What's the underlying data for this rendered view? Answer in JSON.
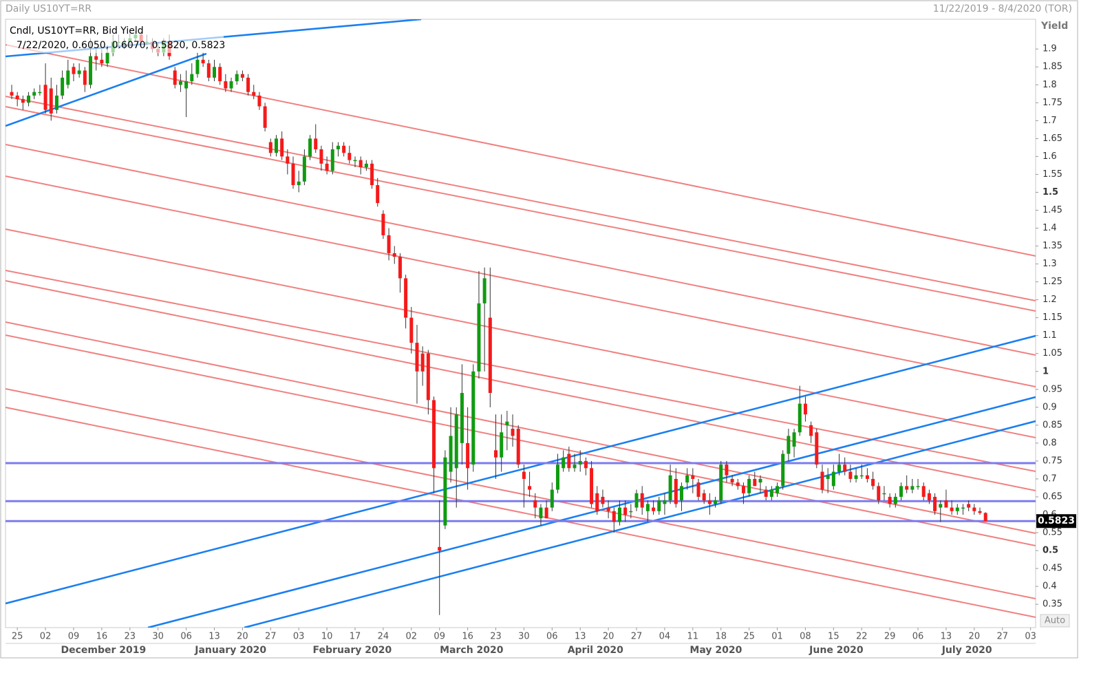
{
  "chart_data": {
    "type": "candlestick",
    "title": "Daily US10YT=RR",
    "date_range": "11/22/2019 - 8/4/2020 (TOR)",
    "legend": "Cndl, US10YT=RR, Bid Yield",
    "legend_values": "7/22/2020, 0.6050, 0.6070, 0.5820, 0.5823",
    "y_label": "Yield",
    "scale_mode": "Auto",
    "up_color": "#109b10",
    "down_color": "#f51a1a",
    "level_color": "#7b7bf0",
    "levels": [
      0.744,
      0.638,
      0.5823
    ],
    "xlim": [
      -1.1,
      181.9
    ],
    "ylim": [
      0.285,
      1.983
    ],
    "yticks": [
      0.35,
      0.4,
      0.45,
      0.5,
      0.55,
      0.6,
      0.65,
      0.7,
      0.75,
      0.8,
      0.85,
      0.9,
      0.95,
      1,
      1.05,
      1.1,
      1.15,
      1.2,
      1.25,
      1.3,
      1.35,
      1.4,
      1.45,
      1.5,
      1.55,
      1.6,
      1.65,
      1.7,
      1.75,
      1.8,
      1.85,
      1.9
    ],
    "xticks": [
      {
        "value": 1,
        "label": "25"
      },
      {
        "value": 6,
        "label": "02"
      },
      {
        "value": 11,
        "label": "09"
      },
      {
        "value": 16,
        "label": "16"
      },
      {
        "value": 21,
        "label": "23"
      },
      {
        "value": 26,
        "label": "30"
      },
      {
        "value": 31,
        "label": "06"
      },
      {
        "value": 36,
        "label": "13"
      },
      {
        "value": 41,
        "label": "20"
      },
      {
        "value": 46,
        "label": "27"
      },
      {
        "value": 51,
        "label": "03"
      },
      {
        "value": 56,
        "label": "10"
      },
      {
        "value": 61,
        "label": "17"
      },
      {
        "value": 66,
        "label": "24"
      },
      {
        "value": 71,
        "label": "02"
      },
      {
        "value": 76,
        "label": "09"
      },
      {
        "value": 81,
        "label": "16"
      },
      {
        "value": 86,
        "label": "23"
      },
      {
        "value": 91,
        "label": "30"
      },
      {
        "value": 96,
        "label": "06"
      },
      {
        "value": 101,
        "label": "13"
      },
      {
        "value": 106,
        "label": "20"
      },
      {
        "value": 111,
        "label": "27"
      },
      {
        "value": 116,
        "label": "04"
      },
      {
        "value": 121,
        "label": "11"
      },
      {
        "value": 126,
        "label": "18"
      },
      {
        "value": 131,
        "label": "25"
      },
      {
        "value": 136,
        "label": "01"
      },
      {
        "value": 141,
        "label": "08"
      },
      {
        "value": 146,
        "label": "15"
      },
      {
        "value": 151,
        "label": "22"
      },
      {
        "value": 156,
        "label": "29"
      },
      {
        "value": 161,
        "label": "06"
      },
      {
        "value": 166,
        "label": "13"
      },
      {
        "value": 171,
        "label": "20"
      },
      {
        "value": 176,
        "label": "27"
      },
      {
        "value": 181,
        "label": "03"
      }
    ],
    "months": [
      {
        "value": 16.3,
        "label": "December 2019"
      },
      {
        "value": 38.9,
        "label": "January 2020"
      },
      {
        "value": 60.5,
        "label": "February 2020"
      },
      {
        "value": 81.7,
        "label": "March 2020"
      },
      {
        "value": 103.7,
        "label": "April 2020"
      },
      {
        "value": 125.1,
        "label": "May 2020"
      },
      {
        "value": 146.5,
        "label": "June 2020"
      },
      {
        "value": 169.7,
        "label": "July 2020"
      }
    ],
    "candles": [
      [
        1.78,
        1.8,
        1.76,
        1.77
      ],
      [
        1.77,
        1.78,
        1.74,
        1.76
      ],
      [
        1.76,
        1.77,
        1.73,
        1.75
      ],
      [
        1.75,
        1.78,
        1.74,
        1.77
      ],
      [
        1.77,
        1.79,
        1.76,
        1.78
      ],
      [
        1.78,
        1.8,
        1.77,
        1.78
      ],
      [
        1.8,
        1.86,
        1.72,
        1.73
      ],
      [
        1.79,
        1.82,
        1.7,
        1.72
      ],
      [
        1.73,
        1.8,
        1.72,
        1.77
      ],
      [
        1.77,
        1.84,
        1.76,
        1.82
      ],
      [
        1.8,
        1.87,
        1.79,
        1.84
      ],
      [
        1.85,
        1.86,
        1.81,
        1.83
      ],
      [
        1.83,
        1.86,
        1.82,
        1.84
      ],
      [
        1.84,
        1.85,
        1.78,
        1.8
      ],
      [
        1.8,
        1.93,
        1.79,
        1.88
      ],
      [
        1.88,
        1.9,
        1.84,
        1.87
      ],
      [
        1.87,
        1.9,
        1.85,
        1.86
      ],
      [
        1.86,
        1.91,
        1.85,
        1.89
      ],
      [
        1.89,
        1.94,
        1.88,
        1.92
      ],
      [
        1.92,
        1.94,
        1.9,
        1.92
      ],
      [
        1.92,
        1.93,
        1.9,
        1.92
      ],
      [
        1.92,
        1.95,
        1.91,
        1.93
      ],
      [
        1.93,
        1.95,
        1.92,
        1.94
      ],
      [
        1.94,
        1.95,
        1.91,
        1.92
      ],
      [
        1.92,
        1.94,
        1.91,
        1.92
      ],
      [
        1.92,
        1.93,
        1.89,
        1.9
      ],
      [
        1.9,
        1.92,
        1.88,
        1.89
      ],
      [
        1.89,
        1.93,
        1.88,
        1.92
      ],
      [
        1.92,
        1.94,
        1.87,
        1.88
      ],
      [
        1.84,
        1.85,
        1.79,
        1.8
      ],
      [
        1.8,
        1.83,
        1.78,
        1.81
      ],
      [
        1.79,
        1.84,
        1.71,
        1.81
      ],
      [
        1.81,
        1.86,
        1.8,
        1.83
      ],
      [
        1.83,
        1.89,
        1.82,
        1.87
      ],
      [
        1.87,
        1.89,
        1.85,
        1.86
      ],
      [
        1.86,
        1.87,
        1.81,
        1.82
      ],
      [
        1.82,
        1.87,
        1.81,
        1.85
      ],
      [
        1.85,
        1.86,
        1.8,
        1.81
      ],
      [
        1.81,
        1.83,
        1.78,
        1.79
      ],
      [
        1.79,
        1.82,
        1.78,
        1.81
      ],
      [
        1.81,
        1.84,
        1.8,
        1.83
      ],
      [
        1.83,
        1.84,
        1.81,
        1.82
      ],
      [
        1.82,
        1.83,
        1.77,
        1.78
      ],
      [
        1.78,
        1.8,
        1.76,
        1.77
      ],
      [
        1.77,
        1.78,
        1.73,
        1.74
      ],
      [
        1.74,
        1.75,
        1.67,
        1.68
      ],
      [
        1.64,
        1.65,
        1.6,
        1.61
      ],
      [
        1.61,
        1.66,
        1.6,
        1.65
      ],
      [
        1.65,
        1.67,
        1.59,
        1.6
      ],
      [
        1.6,
        1.62,
        1.55,
        1.58
      ],
      [
        1.58,
        1.6,
        1.51,
        1.52
      ],
      [
        1.52,
        1.56,
        1.5,
        1.53
      ],
      [
        1.53,
        1.62,
        1.52,
        1.6
      ],
      [
        1.6,
        1.66,
        1.59,
        1.65
      ],
      [
        1.65,
        1.69,
        1.61,
        1.62
      ],
      [
        1.62,
        1.63,
        1.56,
        1.58
      ],
      [
        1.58,
        1.6,
        1.55,
        1.56
      ],
      [
        1.56,
        1.64,
        1.55,
        1.62
      ],
      [
        1.62,
        1.64,
        1.6,
        1.63
      ],
      [
        1.63,
        1.64,
        1.6,
        1.61
      ],
      [
        1.61,
        1.63,
        1.58,
        1.59
      ],
      [
        1.59,
        1.6,
        1.57,
        1.59
      ],
      [
        1.59,
        1.6,
        1.55,
        1.57
      ],
      [
        1.57,
        1.59,
        1.56,
        1.58
      ],
      [
        1.58,
        1.59,
        1.51,
        1.52
      ],
      [
        1.52,
        1.54,
        1.46,
        1.47
      ],
      [
        1.44,
        1.45,
        1.37,
        1.38
      ],
      [
        1.38,
        1.4,
        1.31,
        1.33
      ],
      [
        1.33,
        1.35,
        1.3,
        1.32
      ],
      [
        1.32,
        1.33,
        1.22,
        1.26
      ],
      [
        1.26,
        1.27,
        1.12,
        1.15
      ],
      [
        1.15,
        1.18,
        1.05,
        1.08
      ],
      [
        1.08,
        1.13,
        0.91,
        1
      ],
      [
        1.05,
        1.07,
        0.96,
        1
      ],
      [
        1.05,
        1.06,
        0.88,
        0.92
      ],
      [
        0.92,
        0.93,
        0.66,
        0.73
      ],
      [
        0.51,
        0.64,
        0.32,
        0.5
      ],
      [
        0.57,
        0.78,
        0.56,
        0.76
      ],
      [
        0.72,
        0.9,
        0.69,
        0.82
      ],
      [
        0.73,
        0.9,
        0.62,
        0.88
      ],
      [
        0.8,
        1.02,
        0.74,
        0.94
      ],
      [
        0.8,
        0.9,
        0.67,
        0.73
      ],
      [
        0.74,
        1.02,
        0.72,
        1
      ],
      [
        1,
        1.28,
        0.98,
        1.19
      ],
      [
        1.19,
        1.29,
        1,
        1.26
      ],
      [
        1.15,
        1.29,
        0.9,
        0.94
      ],
      [
        0.78,
        0.88,
        0.7,
        0.76
      ],
      [
        0.76,
        0.88,
        0.72,
        0.83
      ],
      [
        0.85,
        0.89,
        0.78,
        0.86
      ],
      [
        0.84,
        0.88,
        0.79,
        0.82
      ],
      [
        0.84,
        0.85,
        0.73,
        0.74
      ],
      [
        0.72,
        0.74,
        0.62,
        0.7
      ],
      [
        0.68,
        0.72,
        0.65,
        0.67
      ],
      [
        0.64,
        0.66,
        0.59,
        0.62
      ],
      [
        0.59,
        0.63,
        0.57,
        0.62
      ],
      [
        0.62,
        0.64,
        0.59,
        0.59
      ],
      [
        0.62,
        0.69,
        0.61,
        0.67
      ],
      [
        0.67,
        0.77,
        0.66,
        0.74
      ],
      [
        0.73,
        0.78,
        0.72,
        0.76
      ],
      [
        0.77,
        0.79,
        0.72,
        0.73
      ],
      [
        0.73,
        0.77,
        0.72,
        0.74
      ],
      [
        0.74,
        0.78,
        0.72,
        0.75
      ],
      [
        0.75,
        0.76,
        0.71,
        0.73
      ],
      [
        0.73,
        0.75,
        0.62,
        0.63
      ],
      [
        0.66,
        0.68,
        0.6,
        0.61
      ],
      [
        0.65,
        0.67,
        0.62,
        0.63
      ],
      [
        0.62,
        0.64,
        0.59,
        0.61
      ],
      [
        0.61,
        0.62,
        0.55,
        0.58
      ],
      [
        0.58,
        0.64,
        0.57,
        0.62
      ],
      [
        0.62,
        0.64,
        0.58,
        0.6
      ],
      [
        0.61,
        0.63,
        0.59,
        0.61
      ],
      [
        0.62,
        0.67,
        0.61,
        0.66
      ],
      [
        0.66,
        0.68,
        0.6,
        0.62
      ],
      [
        0.61,
        0.64,
        0.58,
        0.63
      ],
      [
        0.62,
        0.64,
        0.6,
        0.61
      ],
      [
        0.61,
        0.65,
        0.6,
        0.64
      ],
      [
        0.63,
        0.66,
        0.6,
        0.64
      ],
      [
        0.64,
        0.74,
        0.63,
        0.71
      ],
      [
        0.7,
        0.73,
        0.62,
        0.63
      ],
      [
        0.64,
        0.69,
        0.61,
        0.68
      ],
      [
        0.69,
        0.73,
        0.67,
        0.71
      ],
      [
        0.71,
        0.73,
        0.66,
        0.7
      ],
      [
        0.69,
        0.7,
        0.64,
        0.65
      ],
      [
        0.66,
        0.67,
        0.63,
        0.64
      ],
      [
        0.64,
        0.66,
        0.6,
        0.63
      ],
      [
        0.63,
        0.65,
        0.62,
        0.64
      ],
      [
        0.64,
        0.75,
        0.63,
        0.74
      ],
      [
        0.74,
        0.75,
        0.69,
        0.71
      ],
      [
        0.7,
        0.71,
        0.68,
        0.69
      ],
      [
        0.69,
        0.7,
        0.67,
        0.68
      ],
      [
        0.68,
        0.69,
        0.63,
        0.66
      ],
      [
        0.66,
        0.71,
        0.65,
        0.7
      ],
      [
        0.7,
        0.72,
        0.68,
        0.68
      ],
      [
        0.69,
        0.71,
        0.66,
        0.7
      ],
      [
        0.67,
        0.68,
        0.64,
        0.65
      ],
      [
        0.65,
        0.68,
        0.64,
        0.67
      ],
      [
        0.66,
        0.69,
        0.65,
        0.68
      ],
      [
        0.68,
        0.78,
        0.67,
        0.77
      ],
      [
        0.77,
        0.84,
        0.75,
        0.82
      ],
      [
        0.79,
        0.84,
        0.76,
        0.83
      ],
      [
        0.83,
        0.96,
        0.82,
        0.91
      ],
      [
        0.91,
        0.93,
        0.86,
        0.88
      ],
      [
        0.85,
        0.86,
        0.8,
        0.82
      ],
      [
        0.83,
        0.84,
        0.73,
        0.74
      ],
      [
        0.72,
        0.74,
        0.66,
        0.67
      ],
      [
        0.7,
        0.73,
        0.66,
        0.71
      ],
      [
        0.68,
        0.74,
        0.67,
        0.72
      ],
      [
        0.72,
        0.77,
        0.71,
        0.74
      ],
      [
        0.74,
        0.76,
        0.71,
        0.72
      ],
      [
        0.72,
        0.74,
        0.69,
        0.7
      ],
      [
        0.7,
        0.73,
        0.69,
        0.71
      ],
      [
        0.71,
        0.74,
        0.7,
        0.71
      ],
      [
        0.71,
        0.73,
        0.69,
        0.7
      ],
      [
        0.7,
        0.72,
        0.67,
        0.68
      ],
      [
        0.68,
        0.69,
        0.63,
        0.64
      ],
      [
        0.66,
        0.68,
        0.64,
        0.66
      ],
      [
        0.65,
        0.66,
        0.62,
        0.63
      ],
      [
        0.63,
        0.66,
        0.62,
        0.65
      ],
      [
        0.65,
        0.69,
        0.64,
        0.68
      ],
      [
        0.68,
        0.71,
        0.66,
        0.67
      ],
      [
        0.67,
        0.7,
        0.66,
        0.68
      ],
      [
        0.68,
        0.7,
        0.67,
        0.68
      ],
      [
        0.68,
        0.69,
        0.64,
        0.65
      ],
      [
        0.66,
        0.67,
        0.63,
        0.64
      ],
      [
        0.65,
        0.66,
        0.6,
        0.61
      ],
      [
        0.62,
        0.64,
        0.58,
        0.63
      ],
      [
        0.64,
        0.67,
        0.62,
        0.62
      ],
      [
        0.62,
        0.64,
        0.6,
        0.61
      ],
      [
        0.61,
        0.63,
        0.6,
        0.62
      ],
      [
        0.62,
        0.63,
        0.6,
        0.62
      ],
      [
        0.63,
        0.64,
        0.61,
        0.62
      ],
      [
        0.62,
        0.63,
        0.6,
        0.61
      ],
      [
        0.61,
        0.62,
        0.6,
        0.605
      ],
      [
        0.605,
        0.607,
        0.582,
        0.5823
      ]
    ]
  }
}
